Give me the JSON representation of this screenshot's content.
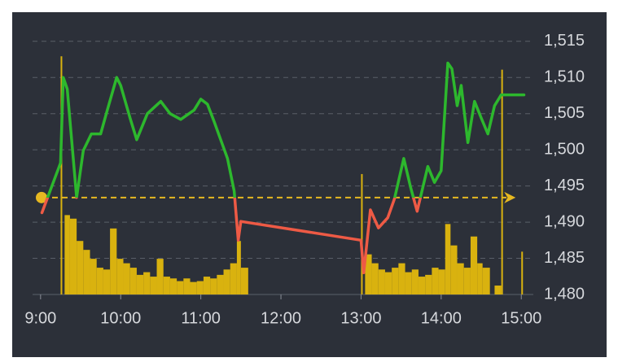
{
  "chart_data": {
    "type": "line",
    "xlim": [
      "8:54",
      "15:09"
    ],
    "xticks": [
      "9:00",
      "10:00",
      "11:00",
      "12:00",
      "13:00",
      "14:00",
      "15:00"
    ],
    "ylim": [
      1480,
      1517
    ],
    "yticks": [
      {
        "value": 1480,
        "label": "1,480"
      },
      {
        "value": 1485,
        "label": "1,485"
      },
      {
        "value": 1490,
        "label": "1,490"
      },
      {
        "value": 1495,
        "label": "1,495"
      },
      {
        "value": 1500,
        "label": "1,500"
      },
      {
        "value": 1505,
        "label": "1,505"
      },
      {
        "value": 1510,
        "label": "1,510"
      },
      {
        "value": 1515,
        "label": "1,515"
      }
    ],
    "grid": true,
    "reference": {
      "value": 1493.4,
      "color": "#e6b821"
    },
    "series": [
      {
        "color": "#2db82d",
        "below_color": "#ee5a45",
        "x": [
          "9:01",
          "9:15",
          "9:17",
          "9:20",
          "9:27",
          "9:32",
          "9:38",
          "9:45",
          "9:50",
          "9:57",
          "10:00",
          "10:07",
          "10:12",
          "10:20",
          "10:30",
          "10:37",
          "10:45",
          "10:55",
          "11:00",
          "11:05",
          "11:10",
          "11:20",
          "11:25",
          "11:28",
          "11:30",
          "13:00",
          "13:02",
          "13:07",
          "13:13",
          "13:20",
          "13:25",
          "13:32",
          "13:37",
          "13:42",
          "13:50",
          "13:55",
          "14:00",
          "14:05",
          "14:08",
          "14:12",
          "14:15",
          "14:20",
          "14:25",
          "14:30",
          "14:35",
          "14:40",
          "14:45",
          "15:02"
        ],
        "values": [
          1491.3,
          1498.2,
          1510.0,
          1508.4,
          1493.4,
          1499.9,
          1502.2,
          1502.2,
          1505.5,
          1510.0,
          1508.9,
          1504.4,
          1501.4,
          1505.0,
          1506.7,
          1505.0,
          1504.2,
          1505.5,
          1507.0,
          1506.3,
          1503.9,
          1498.8,
          1494.3,
          1487.5,
          1490.1,
          1487.5,
          1483.0,
          1491.7,
          1489.2,
          1490.6,
          1493.2,
          1498.8,
          1494.9,
          1491.5,
          1497.7,
          1495.5,
          1497.1,
          1512.0,
          1511.2,
          1506.1,
          1508.9,
          1501.0,
          1506.7,
          1504.4,
          1502.2,
          1506.1,
          1507.6,
          1507.6
        ]
      }
    ],
    "volume": {
      "color": "#d9b20f",
      "lim": [
        0,
        300
      ],
      "x": [
        "9:15",
        "9:18",
        "9:22",
        "9:27",
        "9:32",
        "9:37",
        "9:42",
        "9:47",
        "9:52",
        "9:57",
        "10:02",
        "10:07",
        "10:12",
        "10:17",
        "10:22",
        "10:27",
        "10:32",
        "10:37",
        "10:42",
        "10:47",
        "10:52",
        "10:57",
        "11:02",
        "11:07",
        "11:12",
        "11:17",
        "11:22",
        "11:27",
        "11:30",
        "13:00",
        "13:03",
        "13:08",
        "13:13",
        "13:18",
        "13:23",
        "13:28",
        "13:33",
        "13:38",
        "13:43",
        "13:48",
        "13:53",
        "13:58",
        "14:03",
        "14:07",
        "14:12",
        "14:17",
        "14:22",
        "14:27",
        "14:31",
        "14:40",
        "14:45",
        "15:00"
      ],
      "values": [
        267,
        89,
        85,
        60,
        50,
        40,
        30,
        28,
        74,
        40,
        35,
        30,
        22,
        25,
        20,
        40,
        20,
        18,
        15,
        18,
        14,
        15,
        20,
        18,
        22,
        28,
        35,
        60,
        30,
        135,
        45,
        35,
        28,
        25,
        30,
        35,
        25,
        28,
        20,
        22,
        30,
        28,
        79,
        55,
        35,
        30,
        65,
        35,
        30,
        10,
        252,
        48
      ]
    }
  }
}
